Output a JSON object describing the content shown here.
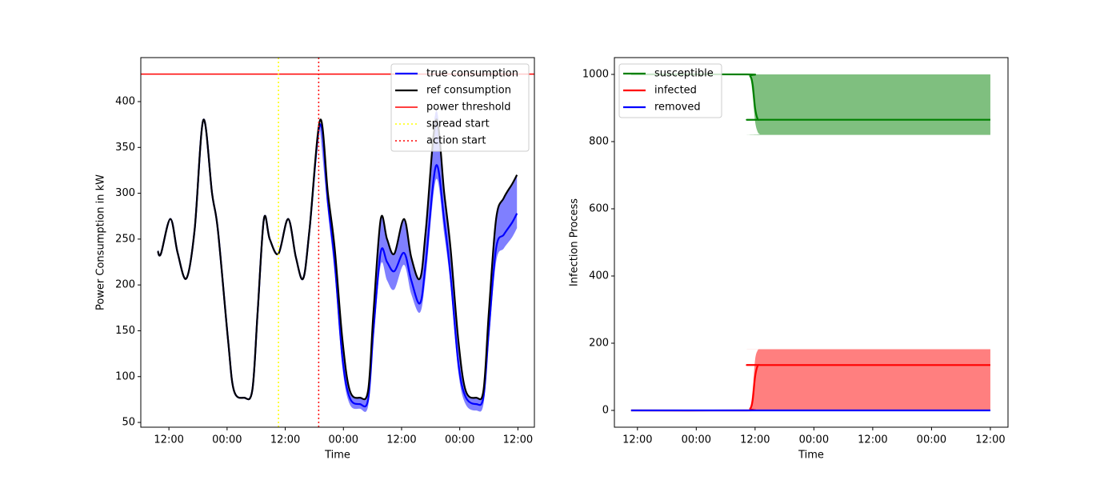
{
  "chart_data": [
    {
      "type": "line",
      "xlabel": "Time",
      "ylabel": "Power Consumption in kW",
      "xlim": [
        -5.8,
        75.4
      ],
      "ylim": [
        44.8,
        448
      ],
      "xticks": [
        {
          "value": 0,
          "label": "12:00"
        },
        {
          "value": 12,
          "label": "00:00"
        },
        {
          "value": 24,
          "label": "12:00"
        },
        {
          "value": 36,
          "label": "00:00"
        },
        {
          "value": 48,
          "label": "12:00"
        },
        {
          "value": 60,
          "label": "00:00"
        },
        {
          "value": 72,
          "label": "12:00"
        }
      ],
      "yticks": [
        50,
        100,
        150,
        200,
        250,
        300,
        350,
        400
      ],
      "legend": "upper right",
      "x": [
        -2.3,
        -1.65,
        0.3,
        1.8,
        3.6,
        5.3,
        7.1,
        8.9,
        10.1,
        12.2,
        13.4,
        15.5,
        17.2,
        18.3,
        19.6,
        20.8,
        22.6,
        24.6,
        26.2,
        27.7,
        29,
        31.2,
        32.8,
        34.2,
        35.8,
        37.3,
        39.4,
        41.1,
        42.2,
        43.7,
        45,
        46.5,
        48.5,
        50,
        51.8,
        53,
        55.1,
        56.8,
        58.1,
        59.7,
        61.2,
        63.4,
        64.9,
        66,
        67.5,
        69.1,
        70.8,
        71.8
      ],
      "bands": [
        {
          "color": "#0000ff",
          "alpha": 0.5,
          "lower": [
            null,
            null,
            null,
            null,
            null,
            null,
            null,
            null,
            null,
            null,
            null,
            null,
            null,
            null,
            null,
            null,
            null,
            null,
            null,
            null,
            null,
            368,
            280,
            212,
            110,
            70,
            65,
            68,
            140,
            222,
            205,
            195,
            222,
            190,
            170,
            210,
            315,
            255,
            200,
            105,
            70,
            63,
            70,
            138,
            225,
            240,
            252,
            262
          ],
          "upper": [
            null,
            null,
            null,
            null,
            null,
            null,
            null,
            null,
            null,
            null,
            null,
            null,
            null,
            null,
            null,
            null,
            null,
            null,
            null,
            null,
            null,
            380,
            300,
            240,
            140,
            85,
            77,
            85,
            170,
            272,
            250,
            234,
            272,
            230,
            207,
            260,
            390,
            300,
            240,
            140,
            85,
            77,
            85,
            170,
            272,
            295,
            310,
            320
          ]
        }
      ],
      "series": [
        {
          "name": "true consumption",
          "color": "#0000ff",
          "values": [
            237,
            234,
            272,
            235,
            207,
            260,
            380,
            300,
            260,
            140,
            85,
            77,
            85,
            170,
            272,
            250,
            234,
            272,
            230,
            207,
            260,
            375,
            290,
            225,
            120,
            77,
            70,
            75,
            150,
            236,
            225,
            215,
            235,
            205,
            180,
            225,
            330,
            270,
            210,
            115,
            78,
            70,
            78,
            150,
            240,
            255,
            268,
            278
          ]
        },
        {
          "name": "ref consumption",
          "color": "#000000",
          "values": [
            237,
            234,
            272,
            235,
            207,
            260,
            380,
            300,
            260,
            140,
            85,
            77,
            85,
            170,
            272,
            250,
            234,
            272,
            230,
            207,
            260,
            380,
            300,
            240,
            140,
            85,
            77,
            85,
            170,
            272,
            250,
            234,
            272,
            230,
            207,
            260,
            380,
            300,
            240,
            140,
            85,
            77,
            85,
            170,
            272,
            295,
            310,
            320
          ]
        }
      ],
      "hlines": [
        {
          "name": "power threshold",
          "y": 430,
          "color": "#ff0000",
          "linestyle": "solid"
        }
      ],
      "vlines": [
        {
          "name": "spread start",
          "x": 22.6,
          "color": "#ffff00",
          "linestyle": "dotted"
        },
        {
          "name": "action start",
          "x": 30.9,
          "color": "#ff0000",
          "linestyle": "dotted"
        }
      ]
    },
    {
      "type": "line",
      "xlabel": "Time",
      "ylabel": "Infection Process",
      "xlim": [
        -4.7,
        75.6
      ],
      "ylim": [
        -50,
        1050
      ],
      "xticks": [
        {
          "value": 0,
          "label": "12:00"
        },
        {
          "value": 12,
          "label": "00:00"
        },
        {
          "value": 24,
          "label": "12:00"
        },
        {
          "value": 36,
          "label": "00:00"
        },
        {
          "value": 48,
          "label": "12:00"
        },
        {
          "value": 60,
          "label": "00:00"
        },
        {
          "value": 72,
          "label": "12:00"
        }
      ],
      "yticks": [
        0,
        200,
        400,
        600,
        800,
        1000
      ],
      "legend": "upper left",
      "x": [
        -1.3,
        22,
        23,
        23.5,
        24,
        24.5,
        25,
        26,
        72
      ],
      "bands": [
        {
          "color": "#008000",
          "alpha": 0.5,
          "lower": [
            1000,
            1000,
            990,
            940,
            860,
            830,
            822,
            820,
            820
          ],
          "upper": [
            1000,
            1000,
            1000,
            1000,
            1000,
            1000,
            1000,
            1000,
            1000
          ]
        },
        {
          "color": "#ff0000",
          "alpha": 0.5,
          "lower": [
            0,
            0,
            0,
            0,
            0,
            0,
            0,
            0,
            0
          ],
          "upper": [
            0,
            0,
            10,
            60,
            150,
            178,
            182,
            182,
            182
          ]
        }
      ],
      "series": [
        {
          "name": "susceptible",
          "color": "#008000",
          "values": [
            1000,
            1000,
            995,
            970,
            900,
            868,
            865,
            865,
            865
          ]
        },
        {
          "name": "infected",
          "color": "#ff0000",
          "values": [
            0,
            0,
            5,
            30,
            100,
            132,
            135,
            135,
            135
          ]
        },
        {
          "name": "removed",
          "color": "#0000ff",
          "values": [
            0,
            0,
            0,
            0,
            0,
            0,
            0,
            0,
            0
          ]
        }
      ]
    }
  ]
}
